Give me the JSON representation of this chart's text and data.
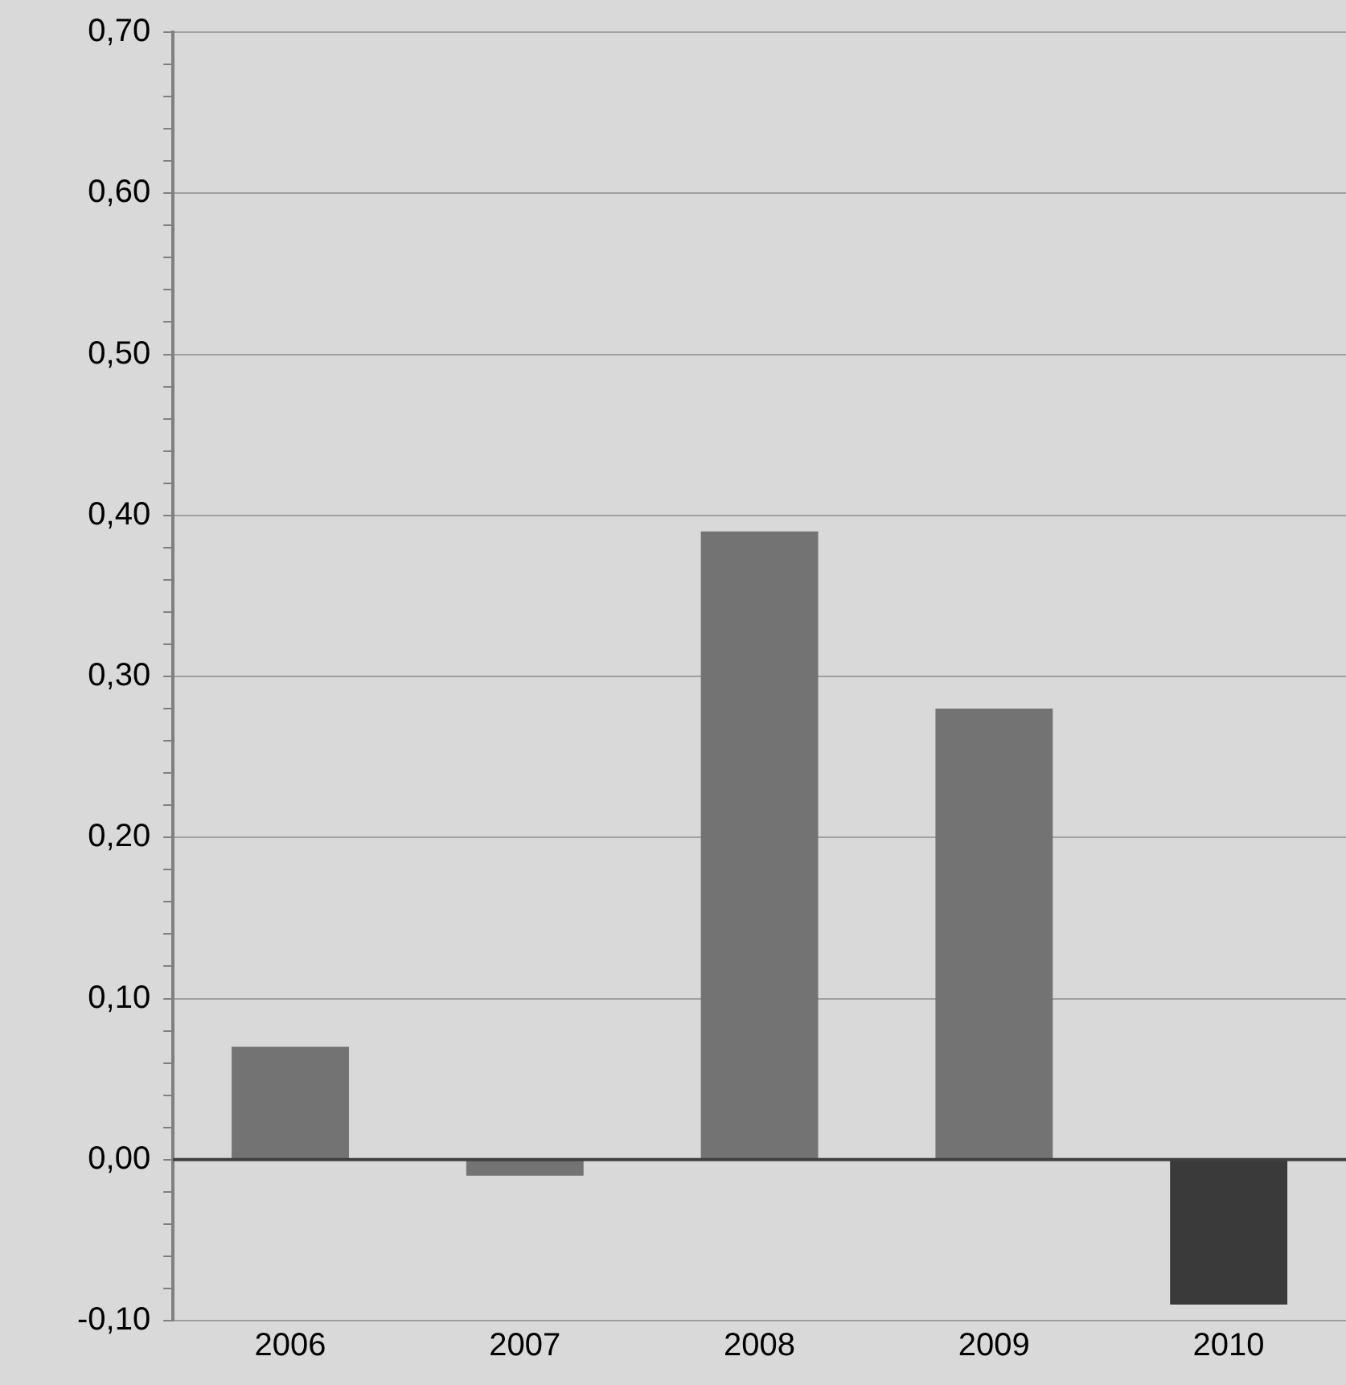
{
  "chart_data": {
    "type": "bar",
    "categories": [
      "2006",
      "2007",
      "2008",
      "2009",
      "2010"
    ],
    "values": [
      0.07,
      -0.01,
      0.39,
      0.28,
      -0.09
    ],
    "colors": [
      "#737373",
      "#737373",
      "#737373",
      "#737373",
      "#3a3a3a"
    ],
    "ylim": [
      -0.1,
      0.7
    ],
    "yticks": [
      {
        "value": -0.1,
        "label": "-0,10"
      },
      {
        "value": -0.08,
        "label": null
      },
      {
        "value": -0.06,
        "label": null
      },
      {
        "value": -0.04,
        "label": null
      },
      {
        "value": -0.02,
        "label": null
      },
      {
        "value": 0,
        "label": "0,00"
      },
      {
        "value": 0.02,
        "label": null
      },
      {
        "value": 0.04,
        "label": null
      },
      {
        "value": 0.06,
        "label": null
      },
      {
        "value": 0.08,
        "label": null
      },
      {
        "value": 0.1,
        "label": "0,10"
      },
      {
        "value": 0.12,
        "label": null
      },
      {
        "value": 0.14,
        "label": null
      },
      {
        "value": 0.16,
        "label": null
      },
      {
        "value": 0.18,
        "label": null
      },
      {
        "value": 0.2,
        "label": "0,20"
      },
      {
        "value": 0.22,
        "label": null
      },
      {
        "value": 0.24,
        "label": null
      },
      {
        "value": 0.26,
        "label": null
      },
      {
        "value": 0.28,
        "label": null
      },
      {
        "value": 0.3,
        "label": "0,30"
      },
      {
        "value": 0.32,
        "label": null
      },
      {
        "value": 0.34,
        "label": null
      },
      {
        "value": 0.36,
        "label": null
      },
      {
        "value": 0.38,
        "label": null
      },
      {
        "value": 0.4,
        "label": "0,40"
      },
      {
        "value": 0.42,
        "label": null
      },
      {
        "value": 0.44,
        "label": null
      },
      {
        "value": 0.46,
        "label": null
      },
      {
        "value": 0.48,
        "label": null
      },
      {
        "value": 0.5,
        "label": "0,50"
      },
      {
        "value": 0.52,
        "label": null
      },
      {
        "value": 0.54,
        "label": null
      },
      {
        "value": 0.56,
        "label": null
      },
      {
        "value": 0.58,
        "label": null
      },
      {
        "value": 0.6,
        "label": "0,60"
      },
      {
        "value": 0.62,
        "label": null
      },
      {
        "value": 0.64,
        "label": null
      },
      {
        "value": 0.66,
        "label": null
      },
      {
        "value": 0.68,
        "label": null
      },
      {
        "value": 0.7,
        "label": "0,70"
      }
    ],
    "grid": "y",
    "legend": false
  }
}
